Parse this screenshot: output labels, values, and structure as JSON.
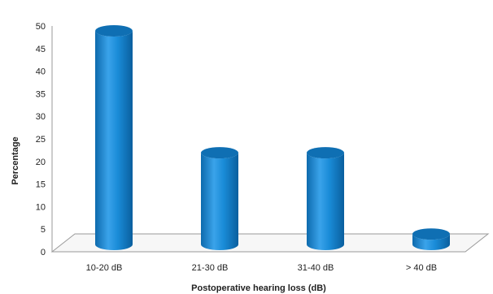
{
  "chart_data": {
    "type": "bar",
    "style": "3d-cylinder",
    "categories": [
      "10-20 dB",
      "21-30 dB",
      "31-40 dB",
      "> 40 dB"
    ],
    "values": [
      50,
      23,
      23,
      5
    ],
    "xlabel": "Postoperative hearing loss (dB)",
    "ylabel": "Percentage",
    "ylim": [
      0,
      50
    ],
    "yticks": [
      0,
      5,
      10,
      15,
      20,
      25,
      30,
      35,
      40,
      45,
      50
    ],
    "grid": false,
    "legend": "none",
    "colors": {
      "bar_body": "#1a8cd8",
      "bar_top": "#0f6fb3",
      "bar_highlight": "#66b9f0",
      "floor_fill": "#f7f7f7",
      "axis_line": "#9a9a9a"
    }
  }
}
